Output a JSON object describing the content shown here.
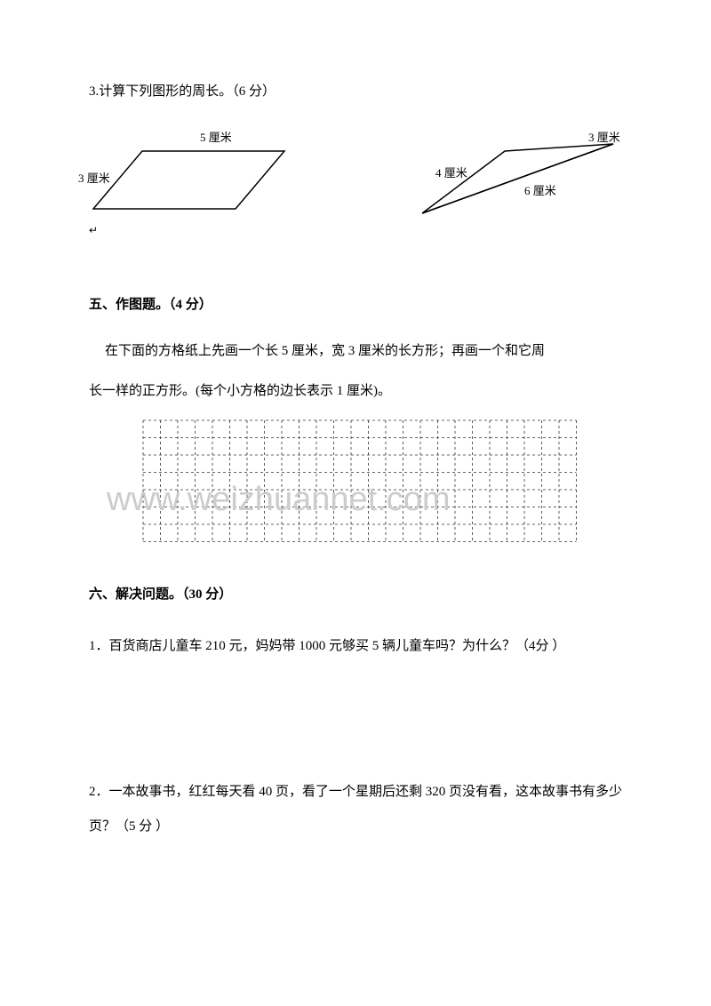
{
  "question3": {
    "text": "3.计算下列图形的周长。（6 分）",
    "parallelogram": {
      "top_label": "5 厘米",
      "left_label": "3 厘米",
      "stroke_color": "#000000",
      "stroke_width": 1.5
    },
    "triangle": {
      "right_label": "3 厘米",
      "left_label": "4 厘米",
      "bottom_label": "6 厘米",
      "stroke_color": "#000000",
      "stroke_width": 1.5
    }
  },
  "section5": {
    "heading": "五、作图题。（4 分）",
    "instruction_line1": "在下面的方格纸上先画一个长 5 厘米，宽 3 厘米的长方形；再画一个和它周",
    "instruction_line2": "长一样的正方形。(每个小方格的边长表示 1 厘米)。",
    "grid": {
      "cols": 25,
      "rows": 7,
      "cell_size": 19.5,
      "stroke_color": "#333333",
      "dash": "3,3"
    }
  },
  "watermark": "www.weizhuannet.com",
  "section6": {
    "heading": "六、解决问题。（30 分）",
    "problem1": "1．百货商店儿童车 210 元，妈妈带 1000 元够买 5 辆儿童车吗？为什么？（4分 ）",
    "problem2": "2．一本故事书，红红每天看 40 页，看了一个星期后还剩 320 页没有看，这本故事书有多少页？（5 分 ）"
  }
}
